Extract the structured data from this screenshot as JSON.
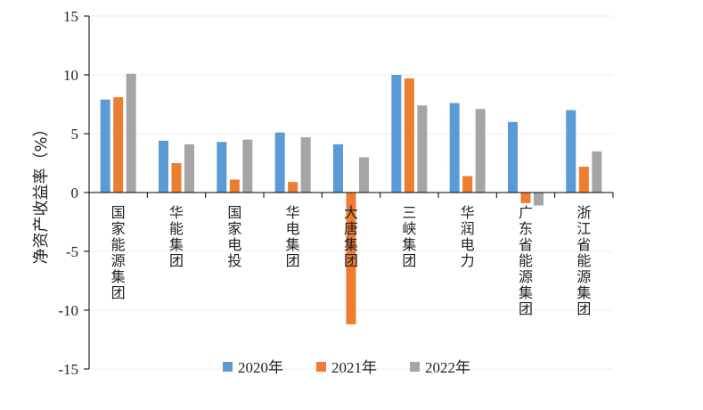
{
  "chart_data": {
    "type": "bar",
    "title": "",
    "xlabel": "",
    "ylabel": "净资产收益率（%）",
    "ylim": [
      -15,
      15
    ],
    "yticks": [
      15,
      10,
      5,
      0,
      -5,
      -10,
      -15
    ],
    "grid": true,
    "legend_position": "bottom",
    "categories": [
      "国家能源集团",
      "华能集团",
      "国家电投",
      "华电集团",
      "大唐集团",
      "三峡集团",
      "华润电力",
      "广东省能源集团",
      "浙江省能源集团"
    ],
    "series": [
      {
        "name": "2020年",
        "color": "#5b9bd5",
        "values": [
          7.9,
          4.4,
          4.3,
          5.1,
          4.1,
          10.0,
          7.6,
          6.0,
          7.0
        ]
      },
      {
        "name": "2021年",
        "color": "#ed7d31",
        "values": [
          8.1,
          2.5,
          1.1,
          0.9,
          -11.2,
          9.7,
          1.4,
          -0.9,
          2.2
        ]
      },
      {
        "name": "2022年",
        "color": "#a5a5a5",
        "values": [
          10.1,
          4.1,
          4.5,
          4.7,
          3.0,
          7.4,
          7.1,
          -1.1,
          3.5
        ]
      }
    ]
  }
}
